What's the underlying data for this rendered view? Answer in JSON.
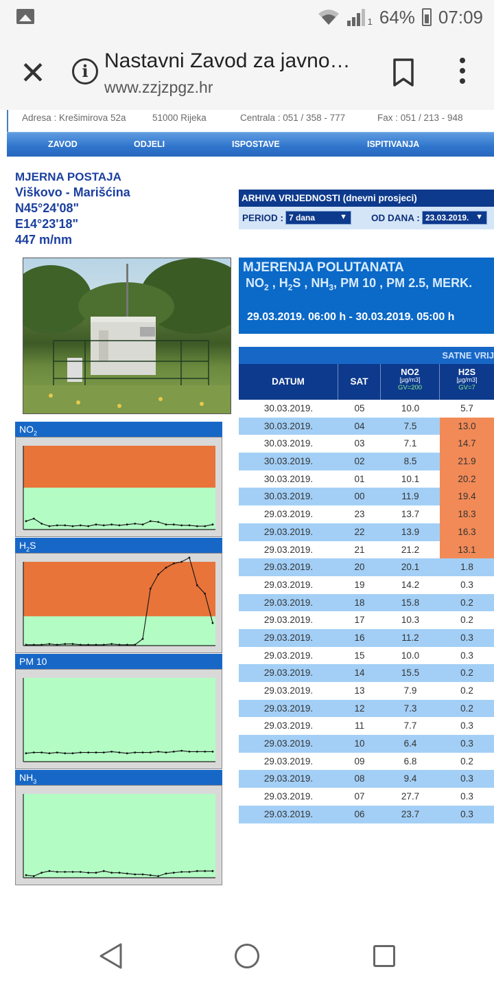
{
  "status_bar": {
    "battery": "64%",
    "time": "07:09",
    "signal_sub": "1"
  },
  "toolbar": {
    "title": "Nastavni Zavod za javno…",
    "url": "www.zzjzpgz.hr"
  },
  "site_header": {
    "address": "Adresa : Krešimirova 52a",
    "city": "51000 Rijeka",
    "central": "Centrala : 051 / 358 - 777",
    "fax": "Fax : 051 / 213 - 948"
  },
  "nav": [
    "ZAVOD",
    "ODJELI",
    "ISPOSTAVE",
    "ISPITIVANJA"
  ],
  "station": {
    "title": "MJERNA POSTAJA",
    "name": "Viškovo - Marišćina",
    "lat": "N45°24'08\"",
    "lon": "E14°23'18\"",
    "alt": "447 m/nm"
  },
  "archive": {
    "header": "ARHIVA VRIJEDNOSTI (dnevni prosjeci)",
    "period_label": "PERIOD :",
    "period_value": "7 dana",
    "from_label": "OD DANA :",
    "from_value": "23.03.2019."
  },
  "charts": {
    "no2": {
      "label": "NO",
      "sub": "2"
    },
    "h2s": {
      "label": "H",
      "sub": "2",
      "rest": "S"
    },
    "pm10": {
      "label": "PM 10"
    },
    "nh3": {
      "label": "NH",
      "sub": "3"
    }
  },
  "chart_data": [
    {
      "type": "line",
      "name": "NO2",
      "values": [
        0.1,
        0.13,
        0.07,
        0.04,
        0.05,
        0.05,
        0.04,
        0.05,
        0.04,
        0.06,
        0.05,
        0.06,
        0.05,
        0.06,
        0.07,
        0.06,
        0.1,
        0.09,
        0.06,
        0.06,
        0.05,
        0.05,
        0.04,
        0.04,
        0.06
      ],
      "limit_fraction": 0.5
    },
    {
      "type": "line",
      "name": "H2S",
      "values": [
        0.01,
        0.01,
        0.01,
        0.02,
        0.01,
        0.02,
        0.02,
        0.01,
        0.01,
        0.01,
        0.01,
        0.02,
        0.01,
        0.01,
        0.01,
        0.08,
        0.68,
        0.85,
        0.93,
        0.98,
        1.0,
        1.05,
        0.72,
        0.62,
        0.27
      ],
      "limit_fraction": 0.65
    },
    {
      "type": "line",
      "name": "PM 10",
      "values": [
        0.1,
        0.11,
        0.11,
        0.1,
        0.11,
        0.1,
        0.1,
        0.11,
        0.11,
        0.11,
        0.11,
        0.12,
        0.11,
        0.1,
        0.11,
        0.11,
        0.11,
        0.12,
        0.11,
        0.12,
        0.13,
        0.12,
        0.12,
        0.12,
        0.12
      ]
    },
    {
      "type": "line",
      "name": "NH3",
      "values": [
        0.03,
        0.02,
        0.06,
        0.08,
        0.07,
        0.07,
        0.07,
        0.07,
        0.06,
        0.06,
        0.08,
        0.06,
        0.06,
        0.05,
        0.04,
        0.04,
        0.03,
        0.02,
        0.05,
        0.06,
        0.07,
        0.07,
        0.08,
        0.08,
        0.08
      ]
    }
  ],
  "banner": {
    "line1": "MJERENJA POLUTANATA",
    "line2_parts": [
      "NO",
      "2",
      " , H",
      "2",
      "S , NH",
      "3",
      ", PM 10 , PM 2.5, MERK."
    ],
    "range": "29.03.2019. 06:00 h  - 30.03.2019. 05:00 h"
  },
  "table": {
    "top_label": "SATNE VRIJ",
    "headers": {
      "datum": "DATUM",
      "sat": "SAT",
      "no2": {
        "name": "NO2",
        "unit": "[µg/m3]",
        "gv": "GV=200"
      },
      "h2s": {
        "name": "H2S",
        "unit": "[µg/m3]",
        "gv": "GV=7"
      }
    },
    "rows": [
      {
        "d": "30.03.2019.",
        "s": "05",
        "no2": "10.0",
        "h2s": "5.7",
        "hi": false
      },
      {
        "d": "30.03.2019.",
        "s": "04",
        "no2": "7.5",
        "h2s": "13.0",
        "hi": true
      },
      {
        "d": "30.03.2019.",
        "s": "03",
        "no2": "7.1",
        "h2s": "14.7",
        "hi": true
      },
      {
        "d": "30.03.2019.",
        "s": "02",
        "no2": "8.5",
        "h2s": "21.9",
        "hi": true
      },
      {
        "d": "30.03.2019.",
        "s": "01",
        "no2": "10.1",
        "h2s": "20.2",
        "hi": true
      },
      {
        "d": "30.03.2019.",
        "s": "00",
        "no2": "11.9",
        "h2s": "19.4",
        "hi": true
      },
      {
        "d": "29.03.2019.",
        "s": "23",
        "no2": "13.7",
        "h2s": "18.3",
        "hi": true
      },
      {
        "d": "29.03.2019.",
        "s": "22",
        "no2": "13.9",
        "h2s": "16.3",
        "hi": true
      },
      {
        "d": "29.03.2019.",
        "s": "21",
        "no2": "21.2",
        "h2s": "13.1",
        "hi": true
      },
      {
        "d": "29.03.2019.",
        "s": "20",
        "no2": "20.1",
        "h2s": "1.8",
        "hi": false
      },
      {
        "d": "29.03.2019.",
        "s": "19",
        "no2": "14.2",
        "h2s": "0.3",
        "hi": false
      },
      {
        "d": "29.03.2019.",
        "s": "18",
        "no2": "15.8",
        "h2s": "0.2",
        "hi": false
      },
      {
        "d": "29.03.2019.",
        "s": "17",
        "no2": "10.3",
        "h2s": "0.2",
        "hi": false
      },
      {
        "d": "29.03.2019.",
        "s": "16",
        "no2": "11.2",
        "h2s": "0.3",
        "hi": false
      },
      {
        "d": "29.03.2019.",
        "s": "15",
        "no2": "10.0",
        "h2s": "0.3",
        "hi": false
      },
      {
        "d": "29.03.2019.",
        "s": "14",
        "no2": "15.5",
        "h2s": "0.2",
        "hi": false
      },
      {
        "d": "29.03.2019.",
        "s": "13",
        "no2": "7.9",
        "h2s": "0.2",
        "hi": false
      },
      {
        "d": "29.03.2019.",
        "s": "12",
        "no2": "7.3",
        "h2s": "0.2",
        "hi": false
      },
      {
        "d": "29.03.2019.",
        "s": "11",
        "no2": "7.7",
        "h2s": "0.3",
        "hi": false
      },
      {
        "d": "29.03.2019.",
        "s": "10",
        "no2": "6.4",
        "h2s": "0.3",
        "hi": false
      },
      {
        "d": "29.03.2019.",
        "s": "09",
        "no2": "6.8",
        "h2s": "0.2",
        "hi": false
      },
      {
        "d": "29.03.2019.",
        "s": "08",
        "no2": "9.4",
        "h2s": "0.3",
        "hi": false
      },
      {
        "d": "29.03.2019.",
        "s": "07",
        "no2": "27.7",
        "h2s": "0.3",
        "hi": false
      },
      {
        "d": "29.03.2019.",
        "s": "06",
        "no2": "23.7",
        "h2s": "0.3",
        "hi": false
      }
    ]
  },
  "colors": {
    "exceed": "#f28a57",
    "ok": "#b3fdc4",
    "chart_orange": "#e8743a"
  }
}
